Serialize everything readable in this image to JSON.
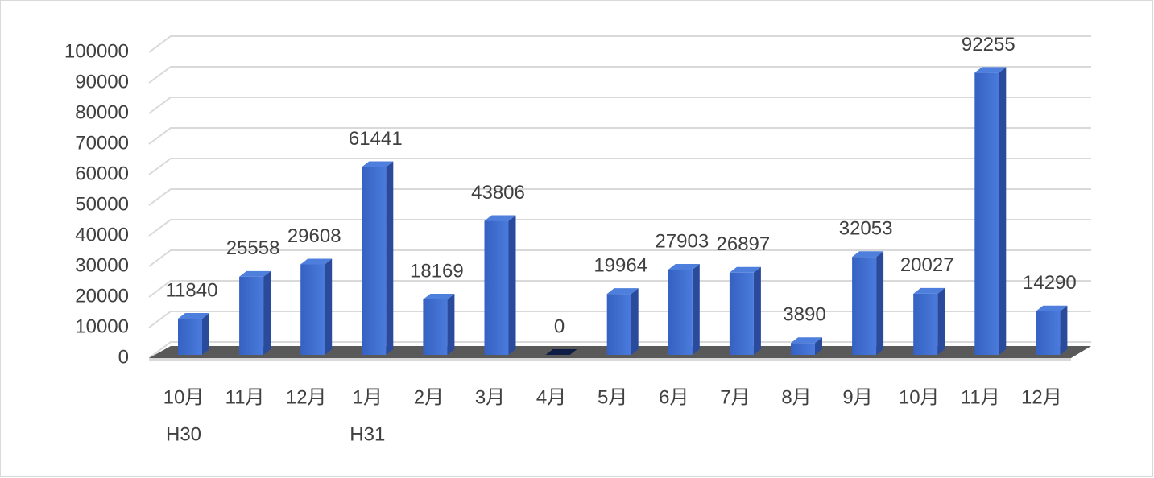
{
  "chart_data": {
    "type": "bar3d",
    "categories": [
      "10月",
      "11月",
      "12月",
      "1月",
      "2月",
      "3月",
      "4月",
      "5月",
      "6月",
      "7月",
      "8月",
      "9月",
      "10月",
      "11月",
      "12月"
    ],
    "category_groups": [
      "H30",
      null,
      null,
      "H31",
      null,
      null,
      null,
      null,
      null,
      null,
      null,
      null,
      null,
      null,
      null
    ],
    "values": [
      11840,
      25558,
      29608,
      61441,
      18169,
      43806,
      0,
      19964,
      27903,
      26897,
      3890,
      32053,
      20027,
      92255,
      14290
    ],
    "color": "#3a66c8",
    "ylim": [
      0,
      100000
    ],
    "yticks": [
      0,
      10000,
      20000,
      30000,
      40000,
      50000,
      60000,
      70000,
      80000,
      90000,
      100000
    ],
    "grid": true
  }
}
